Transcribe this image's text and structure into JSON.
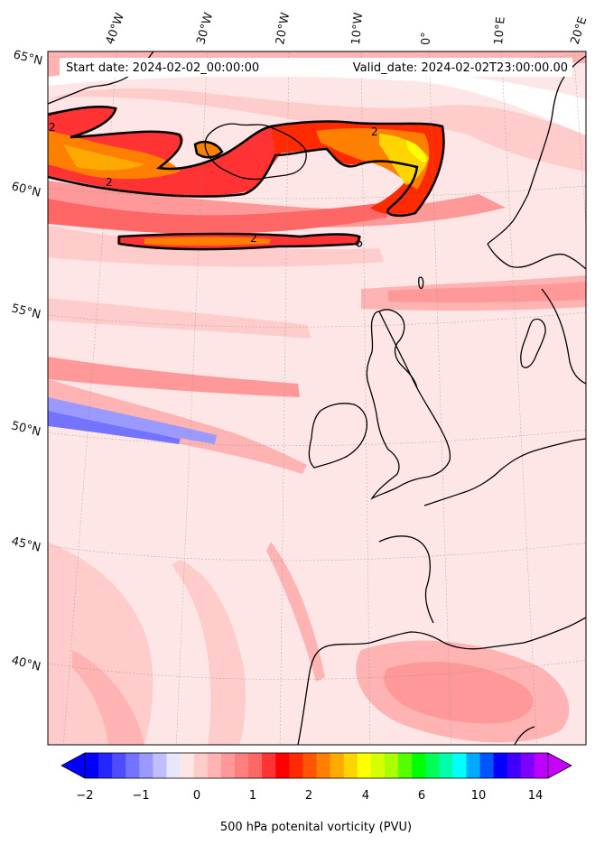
{
  "header": {
    "start_date": "Start date: 2024-02-02_00:00:00",
    "valid_date": "Valid_date: 2024-02-02T23:00:00.00"
  },
  "lon_labels": [
    "40°W",
    "30°W",
    "20°W",
    "10°W",
    "0°",
    "10°E",
    "20°E"
  ],
  "lat_labels": [
    "65°N",
    "60°N",
    "55°N",
    "50°N",
    "45°N",
    "40°N"
  ],
  "contour_labels": [
    "2",
    "2",
    "2",
    "2"
  ],
  "colorbar": {
    "title": "500 hPa potenital vorticity (PVU)",
    "tick_labels": [
      "−2",
      "−1",
      "0",
      "1",
      "2",
      "4",
      "6",
      "10",
      "14"
    ],
    "colors": [
      "#0000ff",
      "#2626ff",
      "#4d4dff",
      "#7373ff",
      "#9999ff",
      "#bfbfff",
      "#e6e6ff",
      "#ffe6e6",
      "#ffcccc",
      "#ffb3b3",
      "#ff9999",
      "#ff7f7f",
      "#ff6666",
      "#ff3333",
      "#ff0000",
      "#ff2a00",
      "#ff5500",
      "#ff8000",
      "#ffaa00",
      "#ffd500",
      "#ffff00",
      "#d5ff00",
      "#aaff00",
      "#55ff00",
      "#00ff00",
      "#00ff55",
      "#00ffaa",
      "#00ffff",
      "#00aaff",
      "#0055ff",
      "#0000ff",
      "#4000ff",
      "#8000ff",
      "#bf00ff"
    ],
    "under_color": "#0000ff",
    "over_color": "#c800ff"
  }
}
